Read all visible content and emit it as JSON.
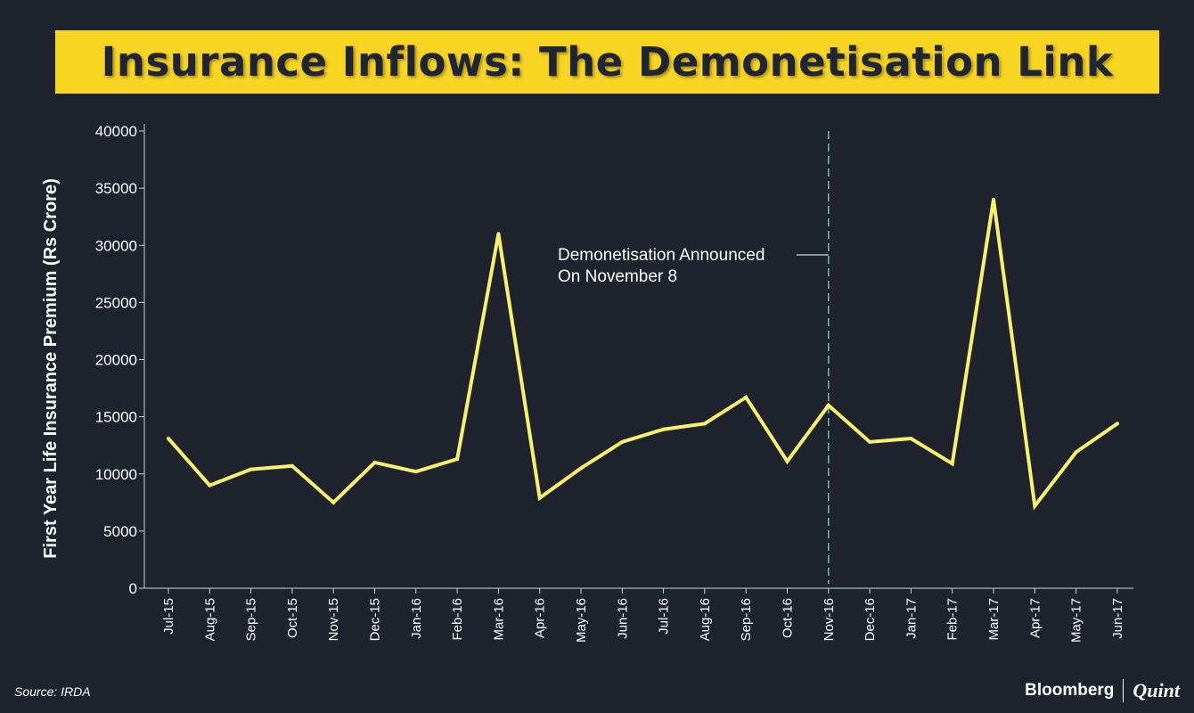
{
  "chart_data": {
    "type": "line",
    "title": "Insurance Inflows: The Demonetisation Link",
    "ylabel": "First Year Life Insurance Premium (Rs Crore)",
    "xlabel": "",
    "ylim": [
      0,
      40000
    ],
    "yticks": [
      0,
      5000,
      10000,
      15000,
      20000,
      25000,
      30000,
      35000,
      40000
    ],
    "categories": [
      "Jul-15",
      "Aug-15",
      "Sep-15",
      "Oct-15",
      "Nov-15",
      "Dec-15",
      "Jan-16",
      "Feb-16",
      "Mar-16",
      "Apr-16",
      "May-16",
      "Jun-16",
      "Jul-16",
      "Aug-16",
      "Sep-16",
      "Oct-16",
      "Nov-16",
      "Dec-16",
      "Jan-17",
      "Feb-17",
      "Mar-17",
      "Apr-17",
      "May-17",
      "Jun-17"
    ],
    "series": [
      {
        "name": "First Year Life Insurance Premium",
        "color": "#f7f16b",
        "values": [
          13100,
          9000,
          10400,
          10700,
          7500,
          11000,
          10200,
          11300,
          31000,
          7900,
          10500,
          12800,
          13900,
          14400,
          16700,
          11100,
          16000,
          12800,
          13100,
          10900,
          34000,
          7200,
          11900,
          14400
        ]
      }
    ],
    "annotation": {
      "category": "Nov-16",
      "line_color": "#6fc1a7",
      "text_line1": "Demonetisation Announced",
      "text_line2": "On November 8"
    },
    "grid": false
  },
  "footer": {
    "source": "Source: IRDA",
    "brand_left": "Bloomberg",
    "brand_right": "Quint"
  }
}
